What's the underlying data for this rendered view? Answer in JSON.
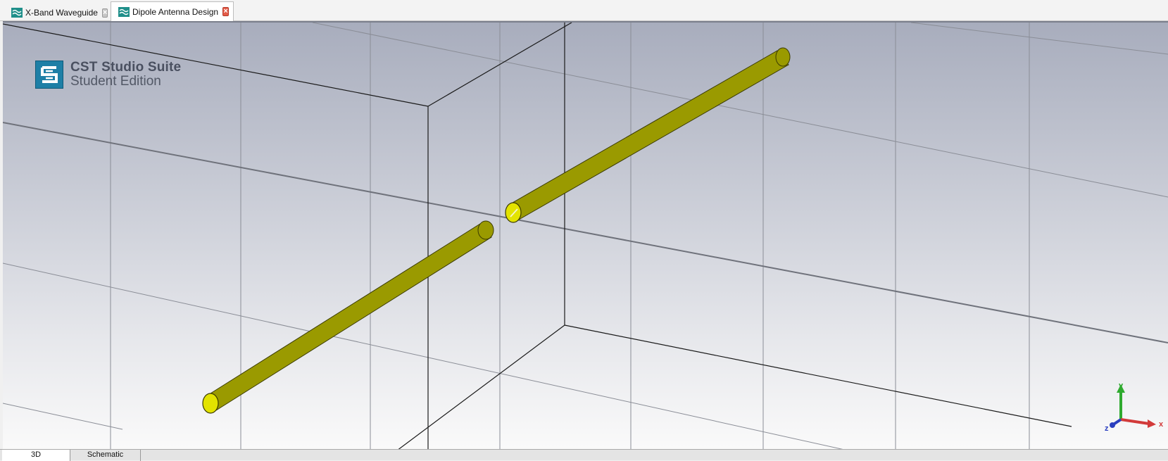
{
  "tabs": [
    {
      "label": "X-Band Waveguide",
      "active": false
    },
    {
      "label": "Dipole Antenna Design",
      "active": true
    }
  ],
  "logo": {
    "title": "CST Studio Suite",
    "subtitle": "Student Edition"
  },
  "axes": {
    "x": "x",
    "y": "y",
    "z": "z"
  },
  "view_tabs": [
    {
      "label": "3D",
      "active": true
    },
    {
      "label": "Schematic",
      "active": false
    }
  ],
  "colors": {
    "dipole": "#9a9a00",
    "dipole_face": "#e3e300",
    "x_axis": "#d23a3a",
    "y_axis": "#2faa2f",
    "z_axis": "#2a3fbf"
  }
}
